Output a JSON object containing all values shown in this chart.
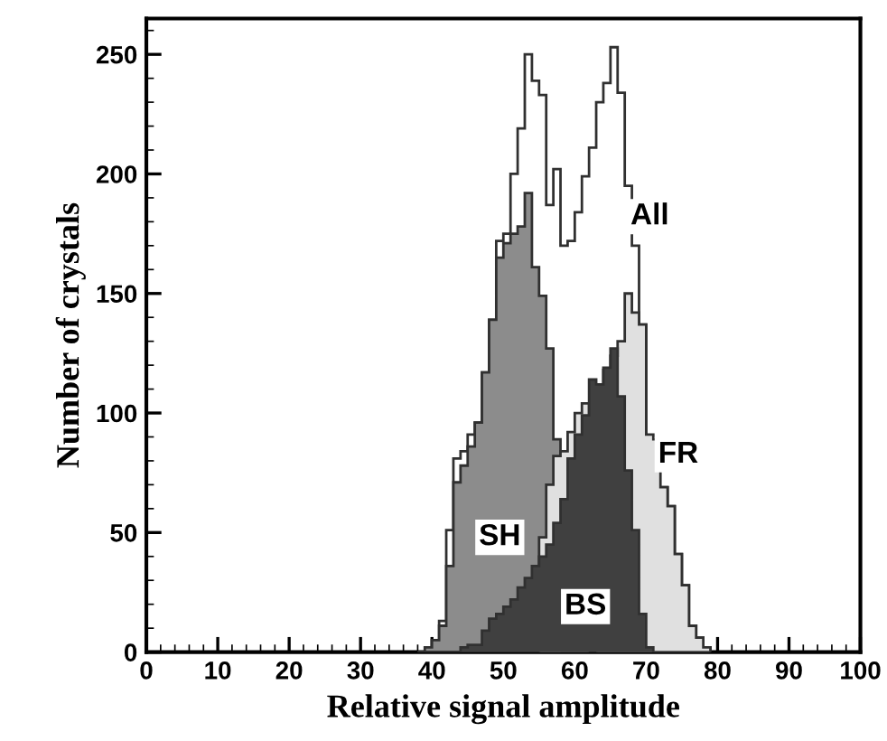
{
  "chart_data": {
    "type": "histogram",
    "xlabel": "Relative signal amplitude",
    "ylabel": "Number of crystals",
    "bins": [
      38,
      39,
      40,
      41,
      42,
      43,
      44,
      45,
      46,
      47,
      48,
      49,
      50,
      51,
      52,
      53,
      54,
      55,
      56,
      57,
      58,
      59,
      60,
      61,
      62,
      63,
      64,
      65,
      66,
      67,
      68,
      69,
      70,
      71,
      72,
      73,
      74,
      75,
      76,
      77,
      78,
      79
    ],
    "series": [
      {
        "name": "All",
        "color": "#ffffff",
        "values": [
          0,
          2,
          5,
          13,
          51,
          81,
          84,
          91,
          96,
          117,
          139,
          172,
          175,
          200,
          219,
          250,
          239,
          233,
          187,
          202,
          170,
          172,
          184,
          199,
          211,
          230,
          238,
          253,
          234,
          195,
          170,
          137,
          null,
          null,
          69,
          61,
          41,
          28,
          11,
          6,
          2
        ]
      },
      {
        "name": "SH",
        "color": "#8c8c8c",
        "values": [
          0,
          2,
          5,
          11,
          36,
          71,
          78,
          86,
          96,
          117,
          139,
          165,
          171,
          175,
          178,
          192,
          161,
          149,
          127,
          89,
          null,
          null,
          null,
          null,
          null,
          0,
          0,
          0,
          0,
          0,
          0,
          0,
          0,
          0,
          0,
          0,
          0,
          0,
          0,
          0,
          0
        ]
      },
      {
        "name": "FR",
        "color": "#e0e0e0",
        "values": [
          0,
          0,
          0,
          0,
          0,
          0,
          0,
          0,
          0,
          0,
          0,
          0,
          0,
          0,
          0,
          null,
          null,
          48,
          70,
          82,
          84,
          92,
          100,
          104,
          null,
          112,
          118,
          124,
          130,
          150,
          142,
          137,
          91,
          89,
          69,
          61,
          41,
          28,
          11,
          6,
          2
        ]
      },
      {
        "name": "BS",
        "color": "#404040",
        "values": [
          0,
          0,
          0,
          0,
          0,
          0,
          2,
          3,
          3,
          9,
          14,
          16,
          19,
          22,
          27,
          31,
          36,
          40,
          45,
          54,
          64,
          81,
          91,
          99,
          114,
          112,
          119,
          127,
          107,
          76,
          51,
          16,
          2,
          0,
          0,
          0,
          0,
          0,
          0,
          0,
          0
        ]
      }
    ],
    "xlim": [
      0,
      100
    ],
    "ylim": [
      0,
      265
    ],
    "xticks": [
      0,
      10,
      20,
      30,
      40,
      50,
      60,
      70,
      80,
      90,
      100
    ],
    "yticks": [
      0,
      50,
      100,
      150,
      200,
      250
    ],
    "grid": false,
    "legend": false
  }
}
